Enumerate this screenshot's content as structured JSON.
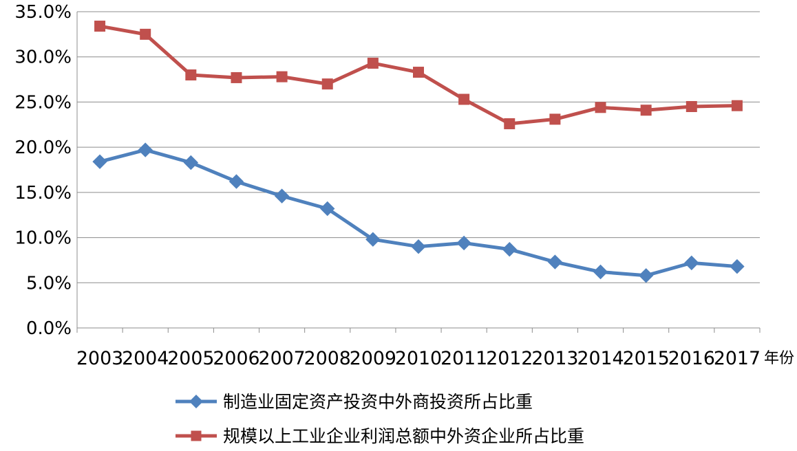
{
  "chart_data": {
    "type": "line",
    "title": "",
    "xlabel": "年份",
    "ylabel": "",
    "ylim": [
      0,
      35
    ],
    "y_tick_labels": [
      "0.0%",
      "5.0%",
      "10.0%",
      "15.0%",
      "20.0%",
      "25.0%",
      "30.0%",
      "35.0%"
    ],
    "grid": true,
    "legend_position": "bottom",
    "categories": [
      "2003",
      "2004",
      "2005",
      "2006",
      "2007",
      "2008",
      "2009",
      "2010",
      "2011",
      "2012",
      "2013",
      "2014",
      "2015",
      "2016",
      "2017"
    ],
    "series": [
      {
        "name": "制造业固定资产投资中外商投资所占比重",
        "color": "#4f81bd",
        "marker": "diamond",
        "values": [
          18.4,
          19.7,
          18.3,
          16.2,
          14.6,
          13.2,
          9.8,
          9.0,
          9.4,
          8.7,
          7.3,
          6.2,
          5.8,
          7.2,
          6.8
        ]
      },
      {
        "name": "规模以上工业企业利润总额中外资企业所占比重",
        "color": "#c0504d",
        "marker": "square",
        "values": [
          33.4,
          32.5,
          28.0,
          27.7,
          27.8,
          27.0,
          29.3,
          28.3,
          25.3,
          22.6,
          23.1,
          24.4,
          24.1,
          24.5,
          24.6
        ]
      }
    ]
  }
}
